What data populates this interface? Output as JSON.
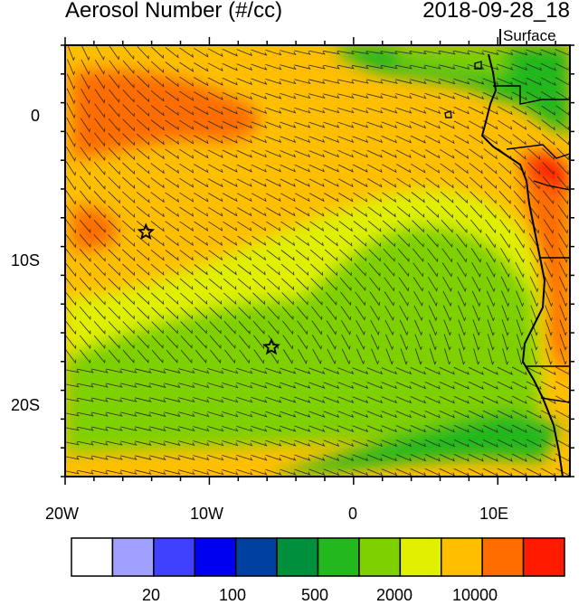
{
  "title": "Aerosol Number (#/cc)",
  "datetime": "2018-09-28_18",
  "level": "Surface",
  "map": {
    "lon_range": [
      -20,
      15
    ],
    "lat_range": [
      -25,
      5
    ],
    "lon_labels": [
      {
        "lon": -20,
        "label": "20W"
      },
      {
        "lon": -10,
        "label": "10W"
      },
      {
        "lon": 0,
        "label": "0"
      },
      {
        "lon": 10,
        "label": "10E"
      }
    ],
    "lat_labels": [
      {
        "lat": 0,
        "label": "0"
      },
      {
        "lat": -10,
        "label": "10S"
      },
      {
        "lat": -20,
        "label": "20S"
      }
    ],
    "markers": [
      {
        "name": "star-marker",
        "lon": -14.4,
        "lat": -8.0
      },
      {
        "name": "star-marker",
        "lon": -5.7,
        "lat": -16.0
      }
    ]
  },
  "colorbar": {
    "colors": [
      "#ffffff",
      "#a0a0ff",
      "#4040ff",
      "#0000f0",
      "#0040a0",
      "#00903c",
      "#22b81e",
      "#7ed000",
      "#e0f000",
      "#ffbf00",
      "#ff6d00",
      "#ff1a00"
    ],
    "labels": [
      {
        "index": 2,
        "label": "20"
      },
      {
        "index": 4,
        "label": "100"
      },
      {
        "index": 6,
        "label": "500"
      },
      {
        "index": 8,
        "label": "2000"
      },
      {
        "index": 10,
        "label": "10000"
      }
    ]
  }
}
